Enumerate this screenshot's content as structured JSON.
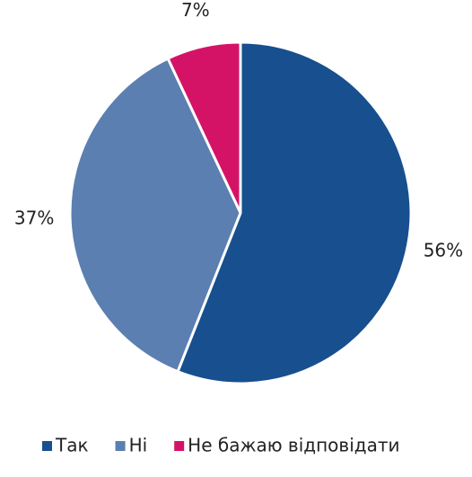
{
  "chart_data": {
    "type": "pie",
    "categories": [
      "Так",
      "Ні",
      "Не бажаю відповідати"
    ],
    "values": [
      56,
      37,
      7
    ],
    "value_labels": [
      "56%",
      "37%",
      "7%"
    ],
    "colors": [
      "#174f8f",
      "#5b7fb0",
      "#d41367"
    ],
    "legend": "bottom"
  }
}
